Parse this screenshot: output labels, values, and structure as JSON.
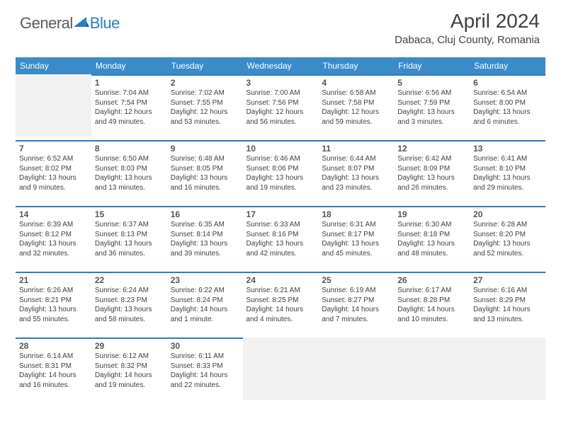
{
  "logo": {
    "text_general": "General",
    "text_blue": "Blue",
    "icon_color": "#2e7cc0"
  },
  "header": {
    "month_title": "April 2024",
    "location": "Dabaca, Cluj County, Romania"
  },
  "styling": {
    "header_bg": "#3b8bc9",
    "header_text": "#ffffff",
    "cell_border_top": "#2e7cc0",
    "empty_bg": "#f1f1f1",
    "day_num_color": "#555555",
    "info_color": "#404040",
    "title_color": "#404040",
    "day_fontsize": 12,
    "info_fontsize": 10,
    "month_fontsize": 28,
    "location_fontsize": 15
  },
  "days_of_week": [
    "Sunday",
    "Monday",
    "Tuesday",
    "Wednesday",
    "Thursday",
    "Friday",
    "Saturday"
  ],
  "grid": [
    [
      {
        "empty": true
      },
      {
        "day": "1",
        "sunrise": "Sunrise: 7:04 AM",
        "sunset": "Sunset: 7:54 PM",
        "daylight": "Daylight: 12 hours and 49 minutes."
      },
      {
        "day": "2",
        "sunrise": "Sunrise: 7:02 AM",
        "sunset": "Sunset: 7:55 PM",
        "daylight": "Daylight: 12 hours and 53 minutes."
      },
      {
        "day": "3",
        "sunrise": "Sunrise: 7:00 AM",
        "sunset": "Sunset: 7:56 PM",
        "daylight": "Daylight: 12 hours and 56 minutes."
      },
      {
        "day": "4",
        "sunrise": "Sunrise: 6:58 AM",
        "sunset": "Sunset: 7:58 PM",
        "daylight": "Daylight: 12 hours and 59 minutes."
      },
      {
        "day": "5",
        "sunrise": "Sunrise: 6:56 AM",
        "sunset": "Sunset: 7:59 PM",
        "daylight": "Daylight: 13 hours and 3 minutes."
      },
      {
        "day": "6",
        "sunrise": "Sunrise: 6:54 AM",
        "sunset": "Sunset: 8:00 PM",
        "daylight": "Daylight: 13 hours and 6 minutes."
      }
    ],
    [
      {
        "day": "7",
        "sunrise": "Sunrise: 6:52 AM",
        "sunset": "Sunset: 8:02 PM",
        "daylight": "Daylight: 13 hours and 9 minutes."
      },
      {
        "day": "8",
        "sunrise": "Sunrise: 6:50 AM",
        "sunset": "Sunset: 8:03 PM",
        "daylight": "Daylight: 13 hours and 13 minutes."
      },
      {
        "day": "9",
        "sunrise": "Sunrise: 6:48 AM",
        "sunset": "Sunset: 8:05 PM",
        "daylight": "Daylight: 13 hours and 16 minutes."
      },
      {
        "day": "10",
        "sunrise": "Sunrise: 6:46 AM",
        "sunset": "Sunset: 8:06 PM",
        "daylight": "Daylight: 13 hours and 19 minutes."
      },
      {
        "day": "11",
        "sunrise": "Sunrise: 6:44 AM",
        "sunset": "Sunset: 8:07 PM",
        "daylight": "Daylight: 13 hours and 23 minutes."
      },
      {
        "day": "12",
        "sunrise": "Sunrise: 6:42 AM",
        "sunset": "Sunset: 8:09 PM",
        "daylight": "Daylight: 13 hours and 26 minutes."
      },
      {
        "day": "13",
        "sunrise": "Sunrise: 6:41 AM",
        "sunset": "Sunset: 8:10 PM",
        "daylight": "Daylight: 13 hours and 29 minutes."
      }
    ],
    [
      {
        "day": "14",
        "sunrise": "Sunrise: 6:39 AM",
        "sunset": "Sunset: 8:12 PM",
        "daylight": "Daylight: 13 hours and 32 minutes."
      },
      {
        "day": "15",
        "sunrise": "Sunrise: 6:37 AM",
        "sunset": "Sunset: 8:13 PM",
        "daylight": "Daylight: 13 hours and 36 minutes."
      },
      {
        "day": "16",
        "sunrise": "Sunrise: 6:35 AM",
        "sunset": "Sunset: 8:14 PM",
        "daylight": "Daylight: 13 hours and 39 minutes."
      },
      {
        "day": "17",
        "sunrise": "Sunrise: 6:33 AM",
        "sunset": "Sunset: 8:16 PM",
        "daylight": "Daylight: 13 hours and 42 minutes."
      },
      {
        "day": "18",
        "sunrise": "Sunrise: 6:31 AM",
        "sunset": "Sunset: 8:17 PM",
        "daylight": "Daylight: 13 hours and 45 minutes."
      },
      {
        "day": "19",
        "sunrise": "Sunrise: 6:30 AM",
        "sunset": "Sunset: 8:18 PM",
        "daylight": "Daylight: 13 hours and 48 minutes."
      },
      {
        "day": "20",
        "sunrise": "Sunrise: 6:28 AM",
        "sunset": "Sunset: 8:20 PM",
        "daylight": "Daylight: 13 hours and 52 minutes."
      }
    ],
    [
      {
        "day": "21",
        "sunrise": "Sunrise: 6:26 AM",
        "sunset": "Sunset: 8:21 PM",
        "daylight": "Daylight: 13 hours and 55 minutes."
      },
      {
        "day": "22",
        "sunrise": "Sunrise: 6:24 AM",
        "sunset": "Sunset: 8:23 PM",
        "daylight": "Daylight: 13 hours and 58 minutes."
      },
      {
        "day": "23",
        "sunrise": "Sunrise: 6:22 AM",
        "sunset": "Sunset: 8:24 PM",
        "daylight": "Daylight: 14 hours and 1 minute."
      },
      {
        "day": "24",
        "sunrise": "Sunrise: 6:21 AM",
        "sunset": "Sunset: 8:25 PM",
        "daylight": "Daylight: 14 hours and 4 minutes."
      },
      {
        "day": "25",
        "sunrise": "Sunrise: 6:19 AM",
        "sunset": "Sunset: 8:27 PM",
        "daylight": "Daylight: 14 hours and 7 minutes."
      },
      {
        "day": "26",
        "sunrise": "Sunrise: 6:17 AM",
        "sunset": "Sunset: 8:28 PM",
        "daylight": "Daylight: 14 hours and 10 minutes."
      },
      {
        "day": "27",
        "sunrise": "Sunrise: 6:16 AM",
        "sunset": "Sunset: 8:29 PM",
        "daylight": "Daylight: 14 hours and 13 minutes."
      }
    ],
    [
      {
        "day": "28",
        "sunrise": "Sunrise: 6:14 AM",
        "sunset": "Sunset: 8:31 PM",
        "daylight": "Daylight: 14 hours and 16 minutes."
      },
      {
        "day": "29",
        "sunrise": "Sunrise: 6:12 AM",
        "sunset": "Sunset: 8:32 PM",
        "daylight": "Daylight: 14 hours and 19 minutes."
      },
      {
        "day": "30",
        "sunrise": "Sunrise: 6:11 AM",
        "sunset": "Sunset: 8:33 PM",
        "daylight": "Daylight: 14 hours and 22 minutes."
      },
      {
        "empty": true
      },
      {
        "empty": true
      },
      {
        "empty": true
      },
      {
        "empty": true
      }
    ]
  ]
}
